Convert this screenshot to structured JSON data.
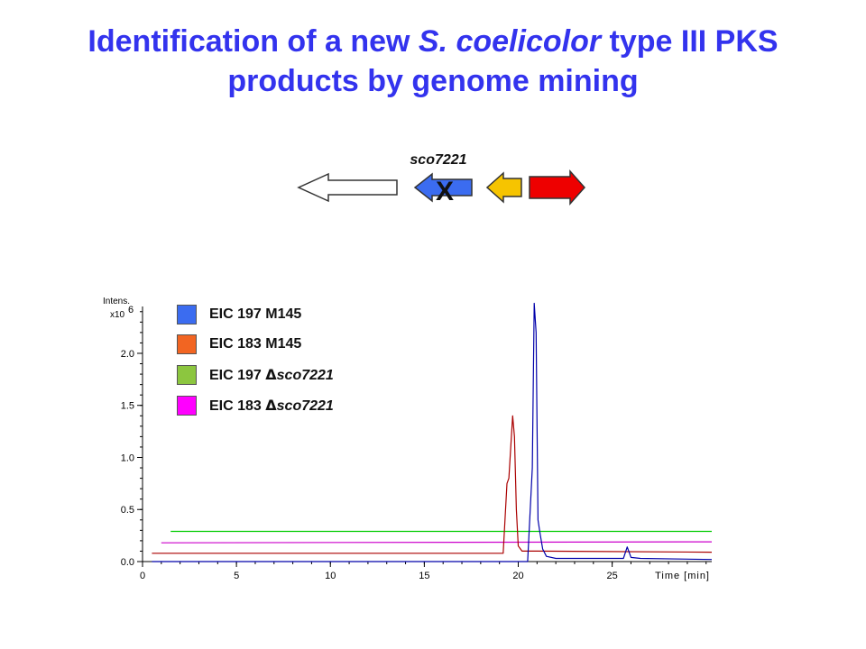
{
  "title": {
    "part1": "Identification of a new ",
    "italic": "S. coelicolor",
    "part2": " type III PKS",
    "line2": "products by genome mining"
  },
  "gene_diagram": {
    "gene_label": "sco7221",
    "deletion_mark": "X",
    "arrows": [
      {
        "color": "#ffffff",
        "direction": "left"
      },
      {
        "color": "#3b6cf0",
        "direction": "left"
      },
      {
        "color": "#f6c400",
        "direction": "left"
      },
      {
        "color": "#ee0000",
        "direction": "right"
      }
    ]
  },
  "chart_data": {
    "type": "line",
    "ylabel_line1": "Intens.",
    "ylabel_line2": "x10",
    "ylabel_exp": "6",
    "xlabel": "Time [min]",
    "xlim": [
      0,
      30.3
    ],
    "ylim": [
      0,
      2.45
    ],
    "xticks": [
      "0",
      "5",
      "10",
      "15",
      "20",
      "25"
    ],
    "yticks": [
      "0.0",
      "0.5",
      "1.0",
      "1.5",
      "2.0"
    ],
    "xtick_values": [
      0,
      5,
      10,
      15,
      20,
      25
    ],
    "ytick_values": [
      0,
      0.5,
      1.0,
      1.5,
      2.0
    ],
    "legend": [
      {
        "label": "EIC 197 M145",
        "color": "#3b6cf0",
        "prefix": "EIC 197 M145",
        "italic": ""
      },
      {
        "label": "EIC 183 M145",
        "color": "#f26522",
        "prefix": "EIC 183 M145",
        "italic": ""
      },
      {
        "label": "EIC 197 Δsco7221",
        "color": "#8cc63f",
        "prefix": "EIC 197 ",
        "italic": "sco7221"
      },
      {
        "label": "EIC 183 Δsco7221",
        "color": "#ff00ff",
        "prefix": "EIC 183 ",
        "italic": "sco7221"
      }
    ],
    "series": [
      {
        "color": "#00cc00",
        "x": [
          1.5,
          30.3
        ],
        "y": [
          0.29,
          0.29
        ]
      },
      {
        "color": "#cc00cc",
        "x": [
          1.0,
          30.3
        ],
        "y": [
          0.18,
          0.19
        ]
      },
      {
        "color": "#aa0000",
        "x": [
          0.5,
          19.2,
          19.4,
          19.5,
          19.7,
          19.8,
          19.9,
          20.0,
          20.2,
          21.0,
          30.3
        ],
        "y": [
          0.08,
          0.08,
          0.75,
          0.8,
          1.4,
          1.2,
          0.5,
          0.15,
          0.1,
          0.1,
          0.09
        ]
      },
      {
        "color": "#0000aa",
        "x": [
          0.5,
          20.5,
          20.75,
          20.85,
          20.95,
          21.05,
          21.15,
          21.3,
          21.5,
          22.0,
          25.6,
          25.8,
          26.0,
          26.5,
          30.3
        ],
        "y": [
          0.0,
          0.0,
          0.9,
          2.48,
          2.2,
          0.4,
          0.28,
          0.12,
          0.05,
          0.03,
          0.03,
          0.14,
          0.04,
          0.03,
          0.02
        ]
      }
    ]
  }
}
